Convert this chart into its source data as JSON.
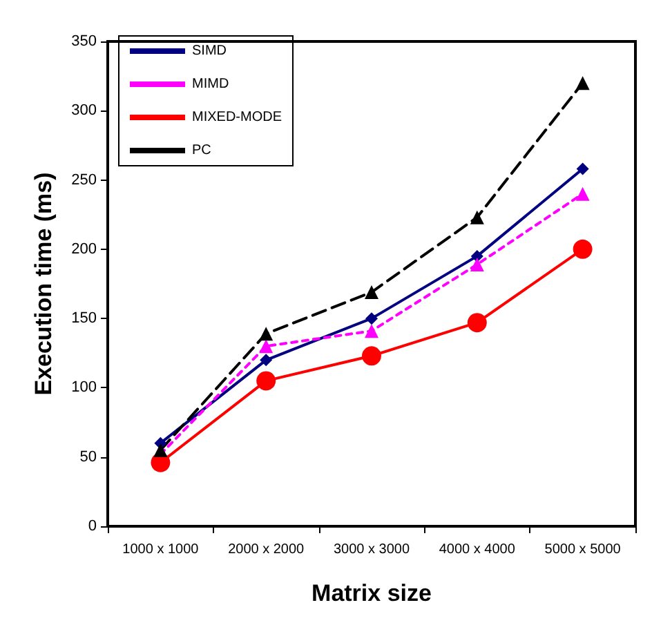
{
  "chart_data": {
    "type": "line",
    "xlabel": "Matrix size",
    "ylabel": "Execution time (ms)",
    "categories": [
      "1000 x 1000",
      "2000 x 2000",
      "3000 x 3000",
      "4000 x 4000",
      "5000 x 5000"
    ],
    "series": [
      {
        "name": "SIMD",
        "color": "#000080",
        "marker": "diamond",
        "line_style": "solid",
        "values": [
          60,
          120,
          150,
          195,
          258
        ]
      },
      {
        "name": "MIMD",
        "color": "#ff00ff",
        "marker": "triangle",
        "line_style": "dotted",
        "values": [
          52,
          130,
          141,
          189,
          240
        ]
      },
      {
        "name": "MIXED-MODE",
        "color": "#ff0000",
        "marker": "circle",
        "line_style": "solid",
        "values": [
          46,
          105,
          123,
          147,
          200
        ]
      },
      {
        "name": "PC",
        "color": "#000000",
        "marker": "triangle",
        "line_style": "dashed",
        "values": [
          55,
          139,
          169,
          223,
          320
        ]
      }
    ],
    "ylim": [
      0,
      350
    ],
    "yticks": [
      0,
      50,
      100,
      150,
      200,
      250,
      300,
      350
    ],
    "grid": false,
    "legend": "top left"
  }
}
